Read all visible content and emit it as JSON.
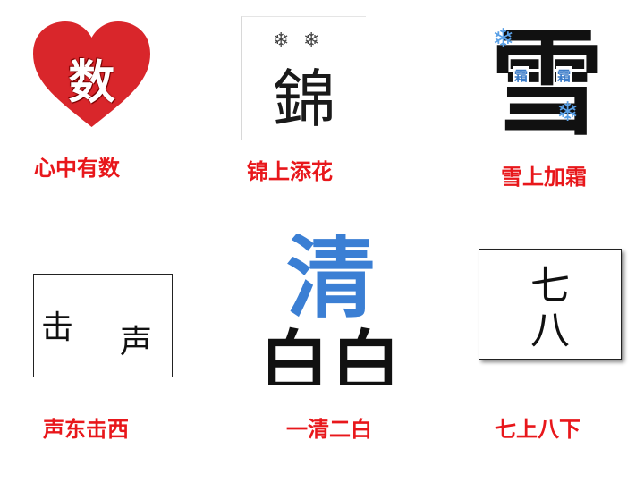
{
  "tiles": [
    {
      "image_text": "数",
      "caption": "心中有数"
    },
    {
      "image_text": "錦",
      "caption": "锦上添花"
    },
    {
      "image_text": "雪",
      "overlay_text": [
        "霜",
        "霜"
      ],
      "caption": "雪上加霜"
    },
    {
      "image_text": [
        "击",
        "声"
      ],
      "caption": "声东击西"
    },
    {
      "image_text": [
        "清",
        "白白"
      ],
      "caption": "一清二白"
    },
    {
      "image_text": [
        "七",
        "八"
      ],
      "caption": "七上八下"
    }
  ],
  "colors": {
    "caption": "#e8171b",
    "heart": "#d9262b",
    "clear_blue": "#3b7fd4",
    "frost_blue": "#3a7bc8",
    "snowflake": "#5aa0e6"
  },
  "icons": [
    "heart-shape",
    "snowflake-icon",
    "snowflake-icon"
  ]
}
